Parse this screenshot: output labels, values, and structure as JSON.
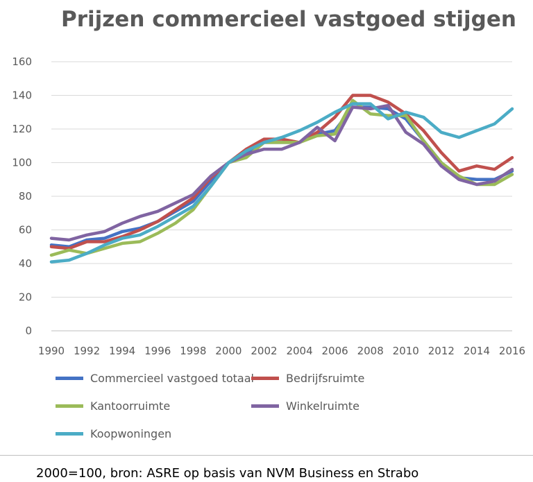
{
  "chart_data": {
    "type": "line",
    "title": "Prijzen commercieel vastgoed stijgen",
    "xlabel": "",
    "ylabel": "",
    "ylim": [
      0,
      160
    ],
    "yticks": [
      0,
      20,
      40,
      60,
      80,
      100,
      120,
      140,
      160
    ],
    "xlim": [
      1990,
      2016
    ],
    "xticks": [
      1990,
      1992,
      1994,
      1996,
      1998,
      2000,
      2002,
      2004,
      2006,
      2008,
      2010,
      2012,
      2014,
      2016
    ],
    "x": [
      1990,
      1991,
      1992,
      1993,
      1994,
      1995,
      1996,
      1997,
      1998,
      1999,
      2000,
      2001,
      2002,
      2003,
      2004,
      2005,
      2006,
      2007,
      2008,
      2009,
      2010,
      2011,
      2012,
      2013,
      2014,
      2015,
      2016
    ],
    "grid": true,
    "legend_position": "bottom",
    "series": [
      {
        "name": "Commercieel vastgoed totaal",
        "color": "#4472C4",
        "values": [
          51,
          50,
          54,
          55,
          59,
          61,
          65,
          71,
          77,
          89,
          100,
          106,
          112,
          112,
          112,
          117,
          119,
          133,
          133,
          132,
          126,
          113,
          100,
          91,
          90,
          90,
          95
        ]
      },
      {
        "name": "Bedrijfsruimte",
        "color": "#C0504D",
        "values": [
          50,
          49,
          53,
          53,
          56,
          60,
          65,
          72,
          79,
          91,
          100,
          108,
          114,
          114,
          112,
          118,
          127,
          140,
          140,
          136,
          129,
          119,
          106,
          95,
          98,
          96,
          103
        ]
      },
      {
        "name": "Kantoorruimte",
        "color": "#9BBB59",
        "values": [
          45,
          48,
          46,
          49,
          52,
          53,
          58,
          64,
          72,
          86,
          100,
          103,
          112,
          112,
          112,
          116,
          117,
          137,
          129,
          128,
          128,
          113,
          100,
          92,
          87,
          87,
          93
        ]
      },
      {
        "name": "Winkelruimte",
        "color": "#8064A2",
        "values": [
          55,
          54,
          57,
          59,
          64,
          68,
          71,
          76,
          81,
          92,
          100,
          105,
          108,
          108,
          112,
          121,
          113,
          133,
          132,
          134,
          118,
          111,
          98,
          90,
          87,
          89,
          96
        ]
      },
      {
        "name": "Koopwoningen",
        "color": "#4BACC6",
        "values": [
          41,
          42,
          46,
          51,
          55,
          57,
          62,
          68,
          74,
          86,
          100,
          107,
          112,
          115,
          119,
          124,
          130,
          135,
          135,
          126,
          130,
          127,
          118,
          115,
          119,
          123,
          132
        ]
      }
    ],
    "footnote": "2000=100, bron: ASRE op basis van NVM Business en Strabo"
  }
}
